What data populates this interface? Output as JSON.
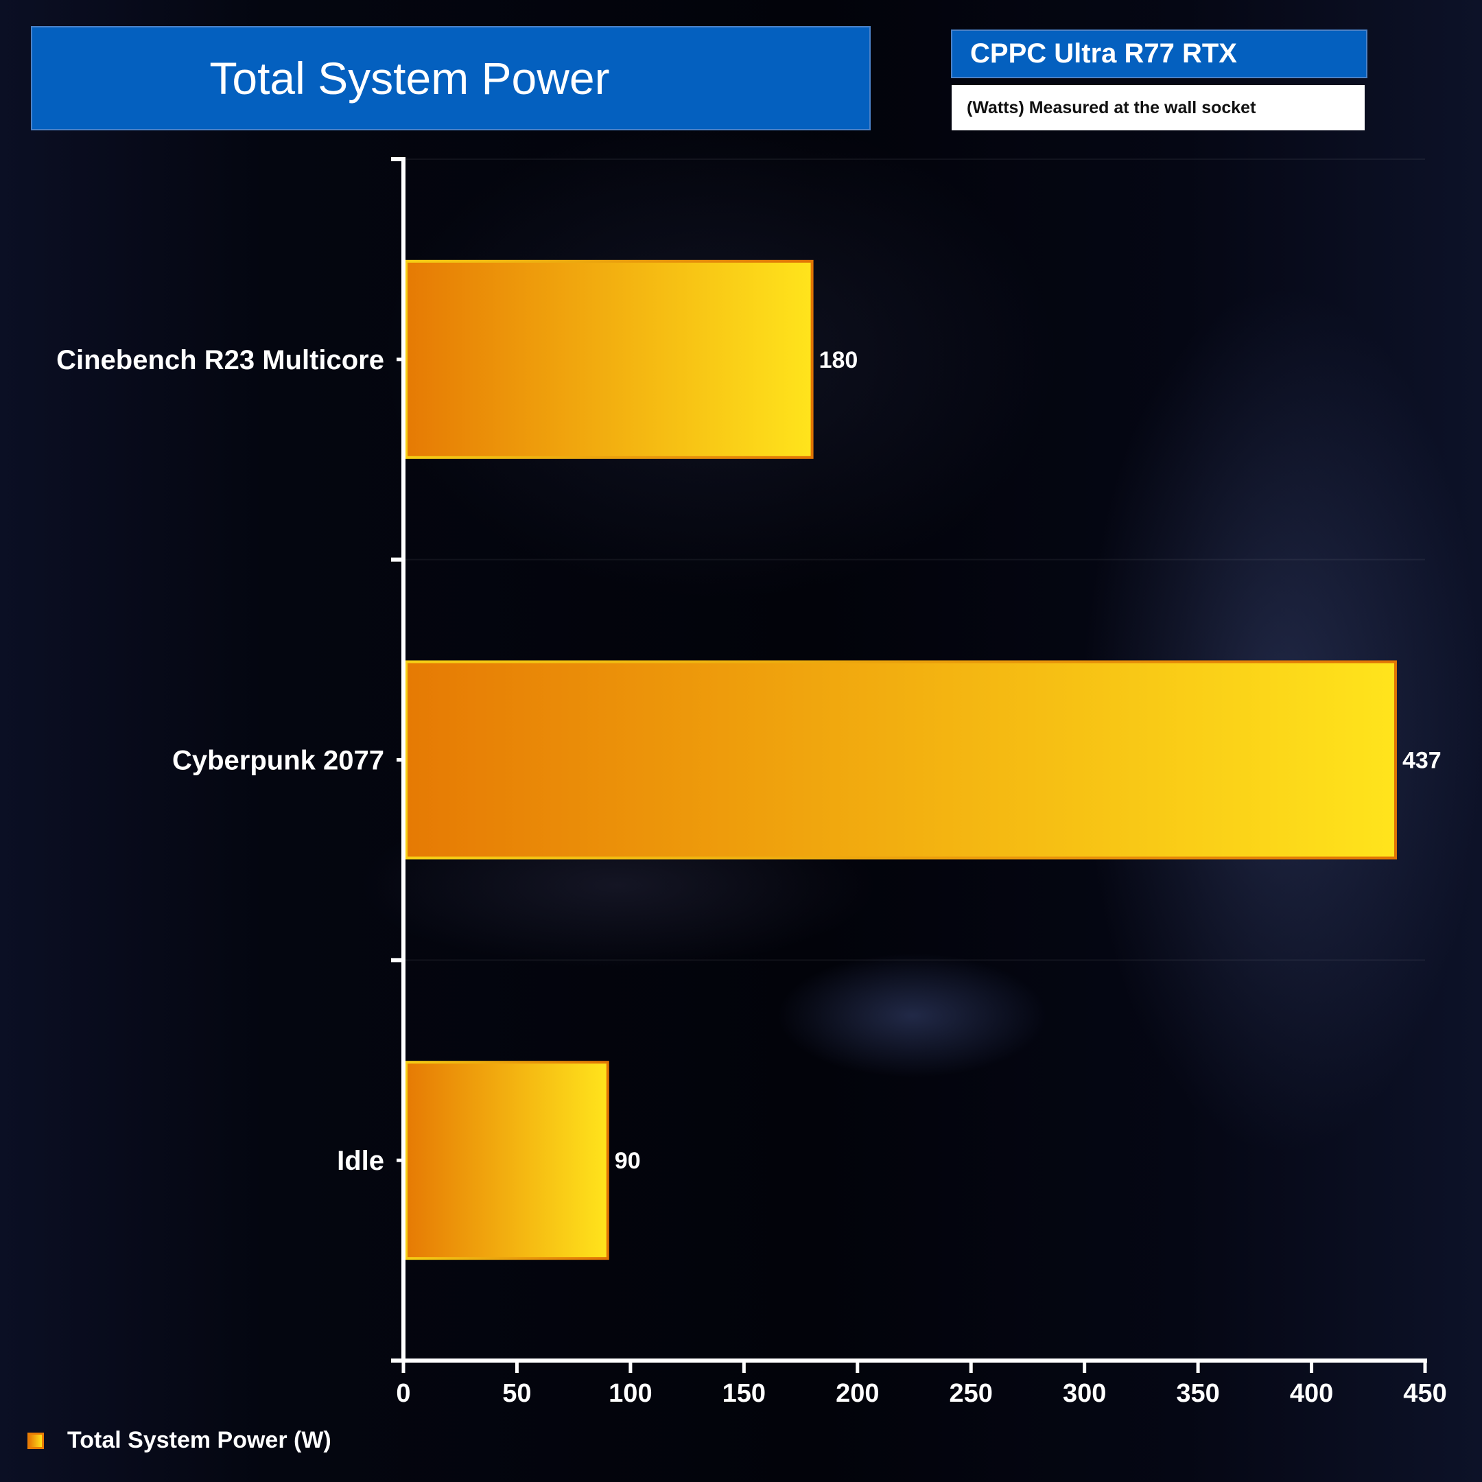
{
  "header": {
    "title": "Total System Power",
    "product": "CPPC Ultra R77 RTX",
    "unit_note": "(Watts) Measured at the wall socket"
  },
  "legend": {
    "label": "Total System Power (W)"
  },
  "colors": {
    "bar_start": "#e67a04",
    "bar_end": "#ffe41c",
    "bar_border_left": "#f5cf16",
    "bar_border_right": "#e07405",
    "axis": "#ffffff",
    "title_bg": "#0460bf"
  },
  "chart_data": {
    "type": "bar",
    "orientation": "horizontal",
    "title": "Total System Power",
    "categories": [
      "Cinebench R23 Multicore",
      "Cyberpunk 2077",
      "Idle"
    ],
    "series": [
      {
        "name": "Total System Power (W)",
        "values": [
          180,
          437,
          90
        ]
      }
    ],
    "xlim": [
      0,
      450
    ],
    "xticks": [
      0,
      50,
      100,
      150,
      200,
      250,
      300,
      350,
      400,
      450
    ],
    "xlabel": "",
    "ylabel": "",
    "legend_position": "bottom-left",
    "grid": false
  }
}
